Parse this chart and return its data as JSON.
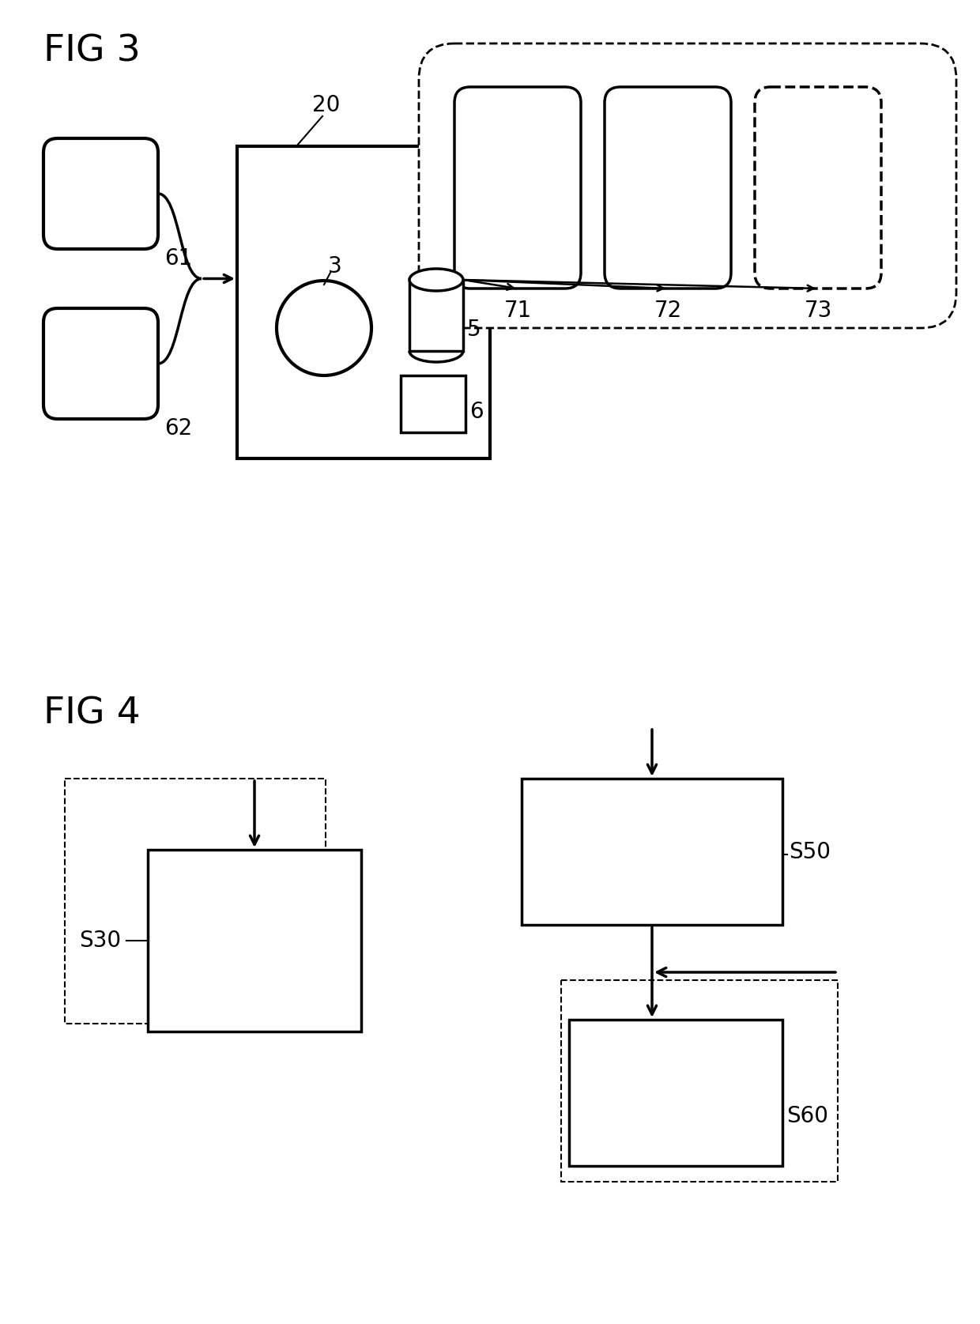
{
  "fig3_title": "FIG 3",
  "fig4_title": "FIG 4",
  "bg_color": "#ffffff",
  "line_color": "#000000",
  "label_61": "61",
  "label_62": "62",
  "label_20": "20",
  "label_3": "3",
  "label_5": "5",
  "label_6": "6",
  "label_71": "71",
  "label_72": "72",
  "label_73": "73",
  "label_S30": "S30",
  "label_S50": "S50",
  "label_S60": "S60"
}
